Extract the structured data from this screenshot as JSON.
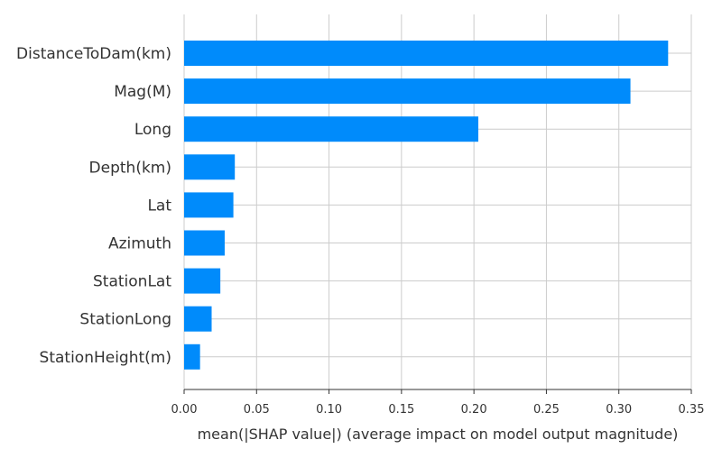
{
  "chart_data": {
    "type": "bar",
    "orientation": "horizontal",
    "categories": [
      "DistanceToDam(km)",
      "Mag(M)",
      "Long",
      "Depth(km)",
      "Lat",
      "Azimuth",
      "StationLat",
      "StationLong",
      "StationHeight(m)"
    ],
    "values": [
      0.334,
      0.308,
      0.203,
      0.035,
      0.034,
      0.028,
      0.025,
      0.019,
      0.011
    ],
    "xlabel": "mean(|SHAP value|) (average impact on model output magnitude)",
    "xlim": [
      0,
      0.35
    ],
    "xticks": [
      "0.00",
      "0.05",
      "0.10",
      "0.15",
      "0.20",
      "0.25",
      "0.30",
      "0.35"
    ],
    "grid": true,
    "bar_color": "#008bfb"
  }
}
